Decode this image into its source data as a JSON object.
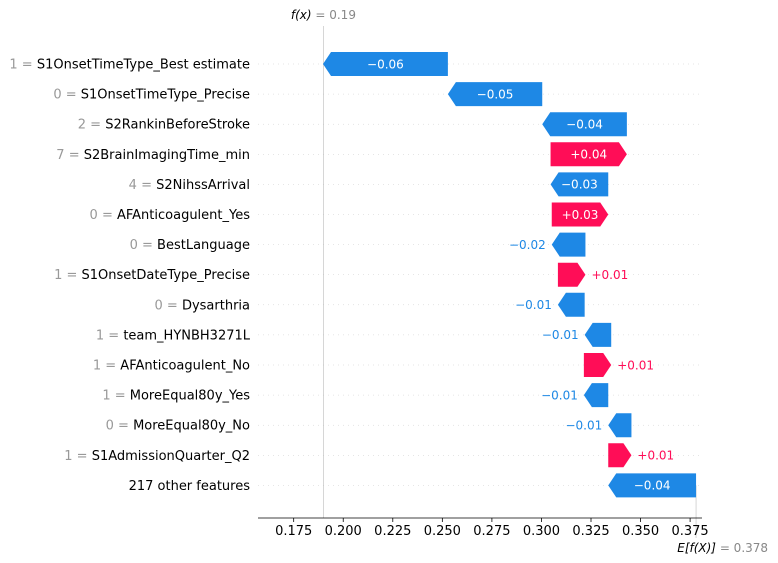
{
  "chart_data": {
    "type": "waterfall",
    "fx": {
      "label": "f(x)",
      "value_text": "0.19",
      "value": 0.19
    },
    "ex": {
      "label": "E[f(X)]",
      "value_text": "0.378",
      "value": 0.378
    },
    "xlim": [
      0.157,
      0.381
    ],
    "xticks": [
      0.175,
      0.2,
      0.225,
      0.25,
      0.275,
      0.3,
      0.325,
      0.35,
      0.375
    ],
    "xtick_labels": [
      "0.175",
      "0.200",
      "0.225",
      "0.250",
      "0.275",
      "0.300",
      "0.325",
      "0.350",
      "0.375"
    ],
    "colors": {
      "positive": "#ff0d57",
      "negative": "#1e88e5",
      "feature_value": "#999999"
    },
    "rows": [
      {
        "value": "1",
        "feature": "S1OnsetTimeType_Best estimate",
        "start": 0.2528,
        "end": 0.1898,
        "label": "−0.06",
        "sign": "neg"
      },
      {
        "value": "0",
        "feature": "S1OnsetTimeType_Precise",
        "start": 0.3004,
        "end": 0.2528,
        "label": "−0.05",
        "sign": "neg"
      },
      {
        "value": "2",
        "feature": "S2RankinBeforeStroke",
        "start": 0.3431,
        "end": 0.3004,
        "label": "−0.04",
        "sign": "neg"
      },
      {
        "value": "7",
        "feature": "S2BrainImagingTime_min",
        "start": 0.3046,
        "end": 0.3431,
        "label": "+0.04",
        "sign": "pos"
      },
      {
        "value": "4",
        "feature": "S2NihssArrival",
        "start": 0.3337,
        "end": 0.3046,
        "label": "−0.03",
        "sign": "neg"
      },
      {
        "value": "0",
        "feature": "AFAnticoagulent_Yes",
        "start": 0.3052,
        "end": 0.3337,
        "label": "+0.03",
        "sign": "pos"
      },
      {
        "value": "0",
        "feature": "BestLanguage",
        "start": 0.3222,
        "end": 0.3052,
        "label": "−0.02",
        "sign": "neg"
      },
      {
        "value": "1",
        "feature": "S1OnsetDateType_Precise",
        "start": 0.3083,
        "end": 0.3222,
        "label": "+0.01",
        "sign": "pos"
      },
      {
        "value": "0",
        "feature": "Dysarthria",
        "start": 0.3218,
        "end": 0.3083,
        "label": "−0.01",
        "sign": "neg"
      },
      {
        "value": "1",
        "feature": "team_HYNBH3271L",
        "start": 0.3352,
        "end": 0.3218,
        "label": "−0.01",
        "sign": "neg"
      },
      {
        "value": "1",
        "feature": "AFAnticoagulent_No",
        "start": 0.3214,
        "end": 0.3352,
        "label": "+0.01",
        "sign": "pos"
      },
      {
        "value": "1",
        "feature": "MoreEqual80y_Yes",
        "start": 0.3337,
        "end": 0.3214,
        "label": "−0.01",
        "sign": "neg"
      },
      {
        "value": "0",
        "feature": "MoreEqual80y_No",
        "start": 0.3454,
        "end": 0.3337,
        "label": "−0.01",
        "sign": "neg"
      },
      {
        "value": "1",
        "feature": "S1AdmissionQuarter_Q2",
        "start": 0.3337,
        "end": 0.3454,
        "label": "+0.01",
        "sign": "pos"
      },
      {
        "value": "",
        "feature": "217 other features",
        "start": 0.378,
        "end": 0.3337,
        "label": "−0.04",
        "sign": "neg"
      }
    ]
  }
}
